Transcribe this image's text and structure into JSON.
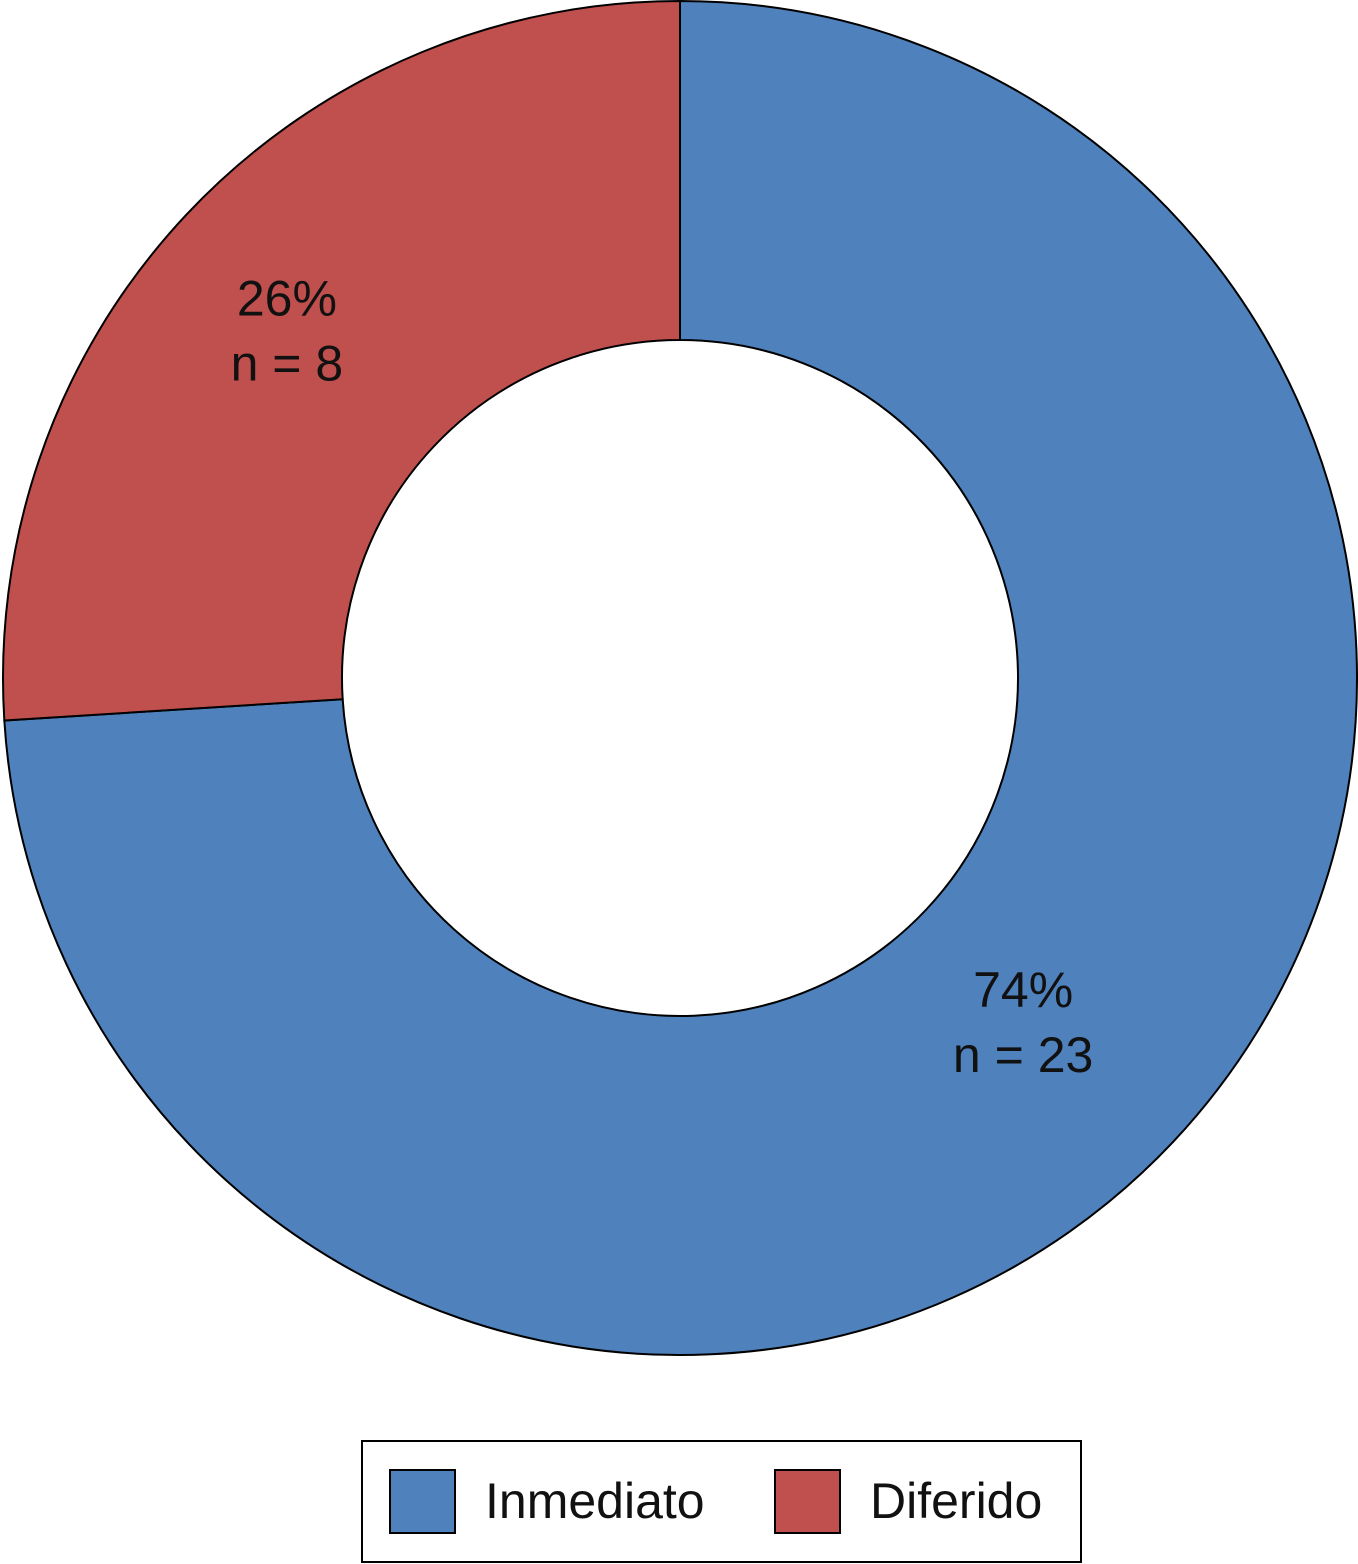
{
  "chart_data": {
    "type": "donut",
    "categories": [
      "Inmediato",
      "Diferido"
    ],
    "values": [
      74,
      26
    ],
    "value_labels": [
      "74%",
      "26%"
    ],
    "counts": [
      23,
      8
    ],
    "count_labels": [
      "n = 23",
      "n = 8"
    ],
    "colors": [
      "#4f81bd",
      "#c0504d"
    ],
    "legend": "bottom"
  }
}
